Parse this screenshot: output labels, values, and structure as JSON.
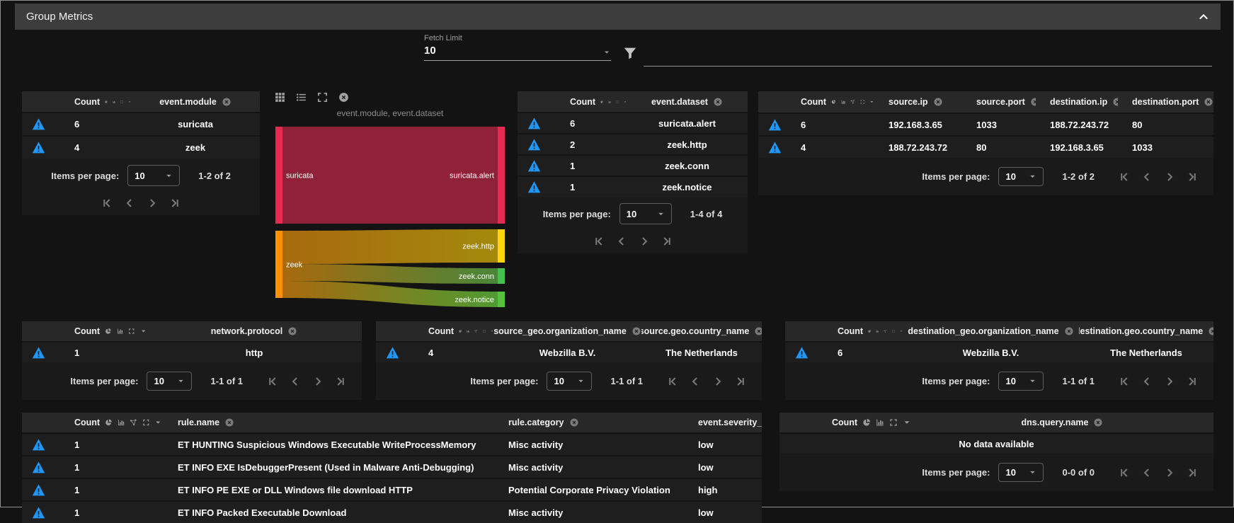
{
  "panel": {
    "title": "Group Metrics"
  },
  "controls": {
    "fetch_limit": {
      "label": "Fetch Limit",
      "value": "10"
    },
    "filter": {
      "value": ""
    }
  },
  "labels": {
    "count": "Count"
  },
  "paginator": {
    "items_per_page_label": "Items per page:",
    "page_size": "10"
  },
  "sankey": {
    "title": "event.module, event.dataset",
    "nodes": [
      {
        "id": "suricata",
        "label": "suricata",
        "color": "#e62a52"
      },
      {
        "id": "zeek",
        "label": "zeek",
        "color": "#ff9008"
      },
      {
        "id": "suricata.alert",
        "label": "suricata.alert",
        "color": "#e62a52"
      },
      {
        "id": "zeek.http",
        "label": "zeek.http",
        "color": "#ffd50a"
      },
      {
        "id": "zeek.conn",
        "label": "zeek.conn",
        "color": "#43bf4e"
      },
      {
        "id": "zeek.notice",
        "label": "zeek.notice",
        "color": "#54c23a"
      }
    ],
    "links": [
      {
        "source": "suricata",
        "target": "suricata.alert",
        "value": 6,
        "colors": [
          "#8f2138",
          "#8f2138"
        ]
      },
      {
        "source": "zeek",
        "target": "zeek.http",
        "value": 2,
        "colors": [
          "#a86a0e",
          "#a3890d"
        ]
      },
      {
        "source": "zeek",
        "target": "zeek.conn",
        "value": 1,
        "colors": [
          "#a8690e",
          "#49873a"
        ]
      },
      {
        "source": "zeek",
        "target": "zeek.notice",
        "value": 1,
        "colors": [
          "#a8690e",
          "#4f9a32"
        ]
      }
    ]
  },
  "tables": [
    {
      "id": "event-module",
      "columns": [
        "event.module"
      ],
      "rows": [
        [
          "6",
          "suricata"
        ],
        [
          "4",
          "zeek"
        ]
      ],
      "range": "1-2 of 2"
    },
    {
      "id": "event-dataset",
      "columns": [
        "event.dataset"
      ],
      "rows": [
        [
          "6",
          "suricata.alert"
        ],
        [
          "2",
          "zeek.http"
        ],
        [
          "1",
          "zeek.conn"
        ],
        [
          "1",
          "zeek.notice"
        ]
      ],
      "range": "1-4 of 4"
    },
    {
      "id": "source-ip",
      "columns": [
        "source.ip",
        "source.port",
        "destination.ip",
        "destination.port"
      ],
      "rows": [
        [
          "6",
          "192.168.3.65",
          "1033",
          "188.72.243.72",
          "80"
        ],
        [
          "4",
          "188.72.243.72",
          "80",
          "192.168.3.65",
          "1033"
        ]
      ],
      "range": "1-2 of 2"
    },
    {
      "id": "network-protocol",
      "columns": [
        "network.protocol"
      ],
      "rows": [
        [
          "1",
          "http"
        ]
      ],
      "range": "1-1 of 1"
    },
    {
      "id": "source-geo",
      "columns": [
        "source_geo.organization_name",
        "source.geo.country_name"
      ],
      "rows": [
        [
          "4",
          "Webzilla B.V.",
          "The Netherlands"
        ]
      ],
      "range": "1-1 of 1"
    },
    {
      "id": "destination-geo",
      "columns": [
        "destination_geo.organization_name",
        "destination.geo.country_name"
      ],
      "rows": [
        [
          "6",
          "Webzilla B.V.",
          "The Netherlands"
        ]
      ],
      "range": "1-1 of 1"
    },
    {
      "id": "rule",
      "columns": [
        "rule.name",
        "rule.category",
        "event.severity_label"
      ],
      "rows": [
        [
          "1",
          "ET HUNTING Suspicious Windows Executable WriteProcessMemory",
          "Misc activity",
          "low"
        ],
        [
          "1",
          "ET INFO EXE IsDebuggerPresent (Used in Malware Anti-Debugging)",
          "Misc activity",
          "low"
        ],
        [
          "1",
          "ET INFO PE EXE or DLL Windows file download HTTP",
          "Potential Corporate Privacy Violation",
          "high"
        ],
        [
          "1",
          "ET INFO Packed Executable Download",
          "Misc activity",
          "low"
        ]
      ],
      "range": ""
    },
    {
      "id": "dns",
      "columns": [
        "dns.query.name"
      ],
      "rows": [],
      "empty": "No data available",
      "range": "0-0 of 0"
    }
  ]
}
